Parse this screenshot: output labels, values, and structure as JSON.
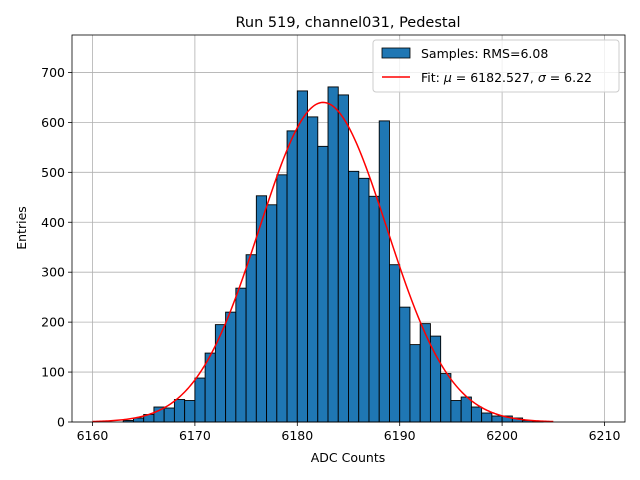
{
  "chart_data": {
    "type": "bar",
    "title": "Run 519, channel031, Pedestal",
    "xlabel": "ADC Counts",
    "ylabel": "Entries",
    "xlim": [
      6158,
      6212
    ],
    "ylim": [
      0,
      775
    ],
    "xticks": [
      6160,
      6170,
      6180,
      6190,
      6200,
      6210
    ],
    "yticks": [
      0,
      100,
      200,
      300,
      400,
      500,
      600,
      700
    ],
    "grid": true,
    "legend_position": "top-right",
    "histogram": {
      "name": "Samples: RMS=6.08",
      "color": "#1f77b4",
      "bin_width": 1,
      "bin_starts": [
        6163,
        6164,
        6165,
        6166,
        6167,
        6168,
        6169,
        6170,
        6171,
        6172,
        6173,
        6174,
        6175,
        6176,
        6177,
        6178,
        6179,
        6180,
        6181,
        6182,
        6183,
        6184,
        6185,
        6186,
        6187,
        6188,
        6189,
        6190,
        6191,
        6192,
        6193,
        6194,
        6195,
        6196,
        6197,
        6198,
        6199,
        6200,
        6201,
        6202,
        6203
      ],
      "values": [
        3,
        8,
        15,
        30,
        28,
        45,
        43,
        88,
        138,
        195,
        220,
        268,
        335,
        453,
        435,
        495,
        583,
        663,
        611,
        552,
        671,
        655,
        502,
        488,
        452,
        603,
        315,
        230,
        155,
        197,
        172,
        97,
        43,
        50,
        30,
        18,
        12,
        12,
        8,
        3,
        1
      ]
    },
    "fit": {
      "name_prefix": "Fit: ",
      "mu_symbol": "μ",
      "mu_text": " = 6182.527, ",
      "sigma_symbol": "σ",
      "sigma_text": " = 6.22",
      "mu": 6182.527,
      "sigma": 6.22,
      "peak": 640,
      "x_range": [
        6160,
        6205
      ],
      "color": "#ff0000"
    }
  }
}
